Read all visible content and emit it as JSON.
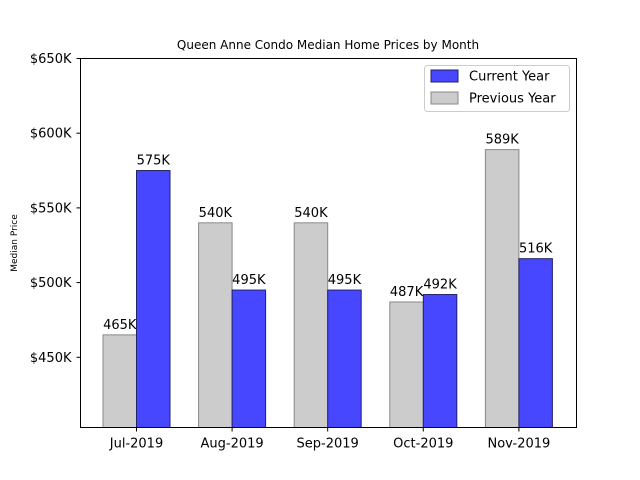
{
  "chart_data": {
    "type": "bar",
    "title": "Queen Anne Condo Median Home Prices by Month",
    "xlabel": "",
    "ylabel": "Median Price",
    "categories": [
      "Jul-2019",
      "Aug-2019",
      "Sep-2019",
      "Oct-2019",
      "Nov-2019"
    ],
    "series": [
      {
        "name": "Previous Year",
        "color": "#cccccc",
        "edge_color": "#888888",
        "values": [
          465,
          540,
          540,
          487,
          589
        ],
        "labels": [
          "465K",
          "540K",
          "540K",
          "487K",
          "589K"
        ]
      },
      {
        "name": "Current Year",
        "color": "#4747ff",
        "edge_color": "#222266",
        "values": [
          575,
          495,
          495,
          492,
          516
        ],
        "labels": [
          "575K",
          "495K",
          "495K",
          "492K",
          "516K"
        ]
      }
    ],
    "legend_order": [
      "Current Year",
      "Previous Year"
    ],
    "y_ticks": [
      450,
      500,
      550,
      600,
      650
    ],
    "y_tick_labels": [
      "$450K",
      "$500K",
      "$550K",
      "$600K",
      "$650K"
    ],
    "ylim": [
      403,
      650
    ],
    "units": "thousands USD",
    "legend_position": "top-right",
    "grid": false
  }
}
